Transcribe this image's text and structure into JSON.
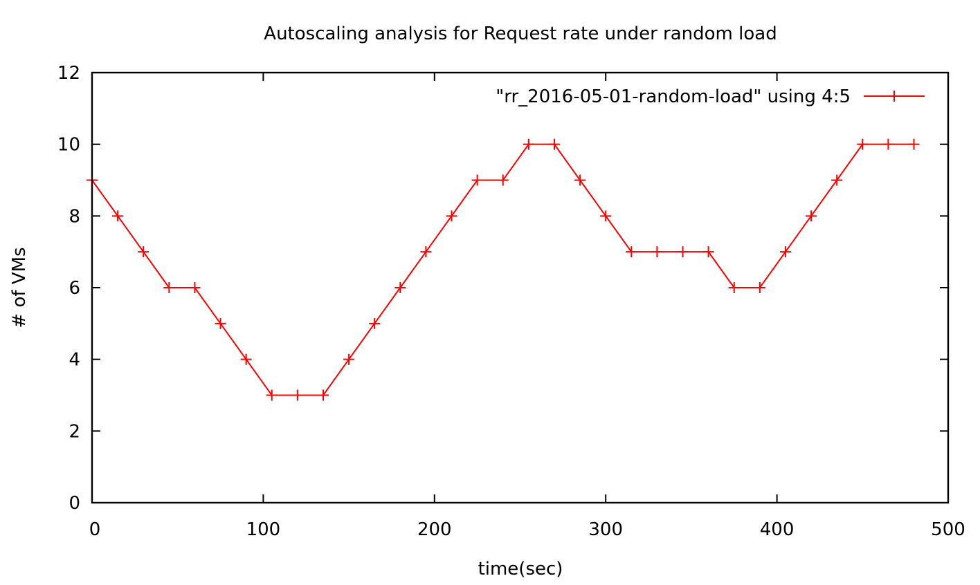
{
  "chart_data": {
    "type": "line",
    "title": "Autoscaling analysis for Request rate under random load",
    "xlabel": "time(sec)",
    "ylabel": "# of VMs",
    "xlim": [
      0,
      500
    ],
    "ylim": [
      0,
      12
    ],
    "x_ticks": [
      0,
      100,
      200,
      300,
      400,
      500
    ],
    "y_ticks": [
      0,
      2,
      4,
      6,
      8,
      10,
      12
    ],
    "grid": false,
    "legend_position": "top-right",
    "series": [
      {
        "name": "\"rr_2016-05-01-random-load\" using 4:5",
        "color": "#ff0000",
        "marker": "plus",
        "x": [
          0,
          15,
          30,
          45,
          60,
          75,
          90,
          105,
          120,
          135,
          150,
          165,
          180,
          195,
          210,
          225,
          240,
          255,
          270,
          285,
          300,
          315,
          330,
          345,
          360,
          375,
          390,
          405,
          420,
          435,
          450,
          465,
          480
        ],
        "y": [
          9,
          8,
          7,
          6,
          6,
          5,
          4,
          3,
          3,
          3,
          4,
          5,
          6,
          7,
          8,
          9,
          9,
          10,
          10,
          9,
          8,
          7,
          7,
          7,
          7,
          6,
          6,
          7,
          8,
          9,
          10,
          10,
          10
        ]
      }
    ]
  }
}
